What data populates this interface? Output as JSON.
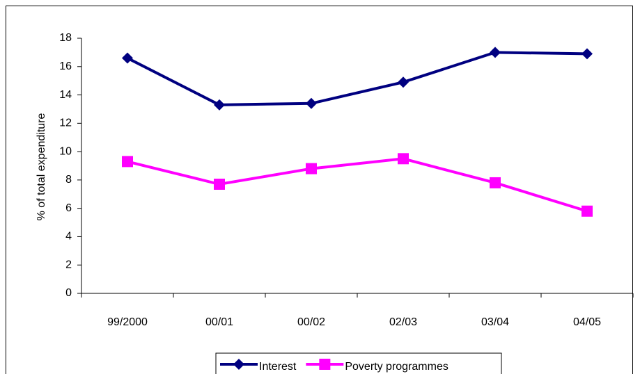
{
  "chart_data": {
    "type": "line",
    "y_label": "% of total expenditure",
    "categories": [
      "99/2000",
      "00/01",
      "00/02",
      "02/03",
      "03/04",
      "04/05"
    ],
    "series": [
      {
        "name": "Interest",
        "color": "#000080",
        "marker": "diamond",
        "values": [
          16.6,
          13.3,
          13.4,
          14.9,
          17.0,
          16.9
        ]
      },
      {
        "name": "Poverty programmes",
        "color": "#ff00ff",
        "marker": "square",
        "values": [
          9.3,
          7.7,
          8.8,
          9.5,
          7.8,
          5.8
        ]
      }
    ],
    "ylim": [
      0,
      18
    ],
    "yticks": [
      0,
      2,
      4,
      6,
      8,
      10,
      12,
      14,
      16,
      18
    ],
    "grid": false,
    "legend": "bottom"
  }
}
